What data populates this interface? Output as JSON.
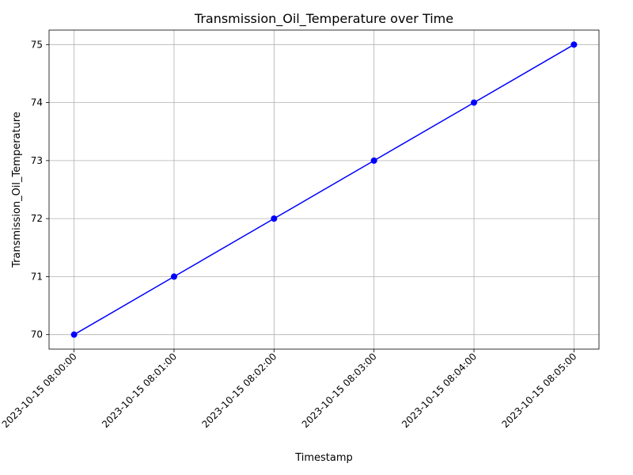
{
  "chart_data": {
    "type": "line",
    "title": "Transmission_Oil_Temperature over Time",
    "xlabel": "Timestamp",
    "ylabel": "Transmission_Oil_Temperature",
    "categories": [
      "2023-10-15 08:00:00",
      "2023-10-15 08:01:00",
      "2023-10-15 08:02:00",
      "2023-10-15 08:03:00",
      "2023-10-15 08:04:00",
      "2023-10-15 08:05:00"
    ],
    "series": [
      {
        "values": [
          70,
          71,
          72,
          73,
          74,
          75
        ],
        "color": "#0000ff",
        "marker": "circle"
      }
    ],
    "ylim": [
      69.75,
      75.25
    ],
    "yticks": [
      70,
      71,
      72,
      73,
      74,
      75
    ],
    "grid": true,
    "legend": "none"
  }
}
